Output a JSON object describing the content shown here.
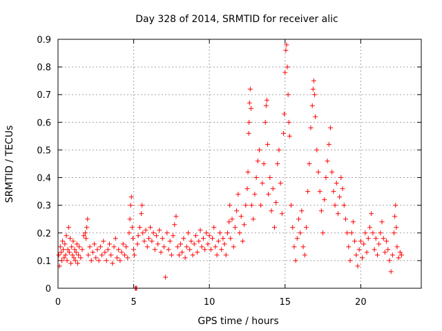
{
  "chart_data": {
    "type": "scatter",
    "title": "Day 328 of 2014, SRMTID for receiver alic",
    "xlabel": "GPS time / hours",
    "ylabel": "SRMTID / TECUs",
    "xlim": [
      0,
      24
    ],
    "ylim": [
      0,
      0.9
    ],
    "xticks": [
      "0",
      "5",
      "10",
      "15",
      "20"
    ],
    "yticks": [
      "0",
      "0.1",
      "0.2",
      "0.3",
      "0.4",
      "0.5",
      "0.6",
      "0.7",
      "0.8",
      "0.9"
    ],
    "grid": true,
    "marker": "plus",
    "color": "#ff0000",
    "series": [
      {
        "name": "SRMTID",
        "points": [
          [
            0.05,
            0.12
          ],
          [
            0.1,
            0.08
          ],
          [
            0.15,
            0.15
          ],
          [
            0.2,
            0.13
          ],
          [
            0.25,
            0.1
          ],
          [
            0.3,
            0.17
          ],
          [
            0.35,
            0.14
          ],
          [
            0.4,
            0.11
          ],
          [
            0.45,
            0.16
          ],
          [
            0.5,
            0.12
          ],
          [
            0.55,
            0.19
          ],
          [
            0.6,
            0.1
          ],
          [
            0.65,
            0.14
          ],
          [
            0.7,
            0.22
          ],
          [
            0.75,
            0.13
          ],
          [
            0.8,
            0.18
          ],
          [
            0.85,
            0.09
          ],
          [
            0.9,
            0.15
          ],
          [
            0.95,
            0.12
          ],
          [
            1.0,
            0.17
          ],
          [
            1.05,
            0.11
          ],
          [
            1.1,
            0.14
          ],
          [
            1.15,
            0.1
          ],
          [
            1.2,
            0.13
          ],
          [
            1.25,
            0.16
          ],
          [
            1.3,
            0.09
          ],
          [
            1.35,
            0.12
          ],
          [
            1.4,
            0.15
          ],
          [
            1.5,
            0.11
          ],
          [
            1.6,
            0.14
          ],
          [
            1.7,
            0.19
          ],
          [
            1.8,
            0.2
          ],
          [
            1.85,
            0.18
          ],
          [
            1.9,
            0.22
          ],
          [
            1.95,
            0.25
          ],
          [
            2.0,
            0.12
          ],
          [
            2.1,
            0.15
          ],
          [
            2.2,
            0.1
          ],
          [
            2.3,
            0.13
          ],
          [
            2.4,
            0.16
          ],
          [
            2.5,
            0.11
          ],
          [
            2.6,
            0.14
          ],
          [
            2.7,
            0.1
          ],
          [
            2.8,
            0.15
          ],
          [
            2.9,
            0.12
          ],
          [
            3.0,
            0.17
          ],
          [
            3.1,
            0.13
          ],
          [
            3.2,
            0.1
          ],
          [
            3.3,
            0.14
          ],
          [
            3.4,
            0.16
          ],
          [
            3.5,
            0.12
          ],
          [
            3.6,
            0.09
          ],
          [
            3.7,
            0.15
          ],
          [
            3.8,
            0.18
          ],
          [
            3.9,
            0.11
          ],
          [
            4.0,
            0.14
          ],
          [
            4.1,
            0.1
          ],
          [
            4.2,
            0.13
          ],
          [
            4.3,
            0.16
          ],
          [
            4.4,
            0.12
          ],
          [
            4.5,
            0.15
          ],
          [
            4.6,
            0.11
          ],
          [
            4.7,
            0.2
          ],
          [
            4.75,
            0.25
          ],
          [
            4.8,
            0.3
          ],
          [
            4.85,
            0.33
          ],
          [
            4.9,
            0.22
          ],
          [
            4.95,
            0.18
          ],
          [
            5.0,
            0.14
          ],
          [
            5.05,
            0.12
          ],
          [
            5.1,
            0.0
          ],
          [
            5.15,
            0.0
          ],
          [
            5.2,
            0.0
          ],
          [
            5.25,
            0.16
          ],
          [
            5.3,
            0.19
          ],
          [
            5.4,
            0.22
          ],
          [
            5.5,
            0.27
          ],
          [
            5.55,
            0.3
          ],
          [
            5.6,
            0.2
          ],
          [
            5.7,
            0.17
          ],
          [
            5.8,
            0.21
          ],
          [
            5.9,
            0.15
          ],
          [
            6.0,
            0.18
          ],
          [
            6.1,
            0.22
          ],
          [
            6.2,
            0.17
          ],
          [
            6.3,
            0.2
          ],
          [
            6.4,
            0.14
          ],
          [
            6.5,
            0.19
          ],
          [
            6.6,
            0.16
          ],
          [
            6.7,
            0.21
          ],
          [
            6.8,
            0.13
          ],
          [
            6.9,
            0.18
          ],
          [
            7.0,
            0.15
          ],
          [
            7.1,
            0.04
          ],
          [
            7.2,
            0.2
          ],
          [
            7.3,
            0.14
          ],
          [
            7.4,
            0.17
          ],
          [
            7.5,
            0.12
          ],
          [
            7.6,
            0.19
          ],
          [
            7.7,
            0.23
          ],
          [
            7.8,
            0.26
          ],
          [
            7.9,
            0.15
          ],
          [
            8.0,
            0.12
          ],
          [
            8.1,
            0.16
          ],
          [
            8.2,
            0.13
          ],
          [
            8.3,
            0.18
          ],
          [
            8.4,
            0.11
          ],
          [
            8.5,
            0.15
          ],
          [
            8.6,
            0.2
          ],
          [
            8.7,
            0.14
          ],
          [
            8.8,
            0.17
          ],
          [
            8.9,
            0.12
          ],
          [
            9.0,
            0.16
          ],
          [
            9.1,
            0.19
          ],
          [
            9.2,
            0.13
          ],
          [
            9.3,
            0.17
          ],
          [
            9.4,
            0.21
          ],
          [
            9.5,
            0.15
          ],
          [
            9.6,
            0.18
          ],
          [
            9.7,
            0.14
          ],
          [
            9.8,
            0.2
          ],
          [
            9.9,
            0.16
          ],
          [
            10.0,
            0.19
          ],
          [
            10.1,
            0.14
          ],
          [
            10.2,
            0.18
          ],
          [
            10.3,
            0.22
          ],
          [
            10.4,
            0.15
          ],
          [
            10.5,
            0.12
          ],
          [
            10.6,
            0.17
          ],
          [
            10.7,
            0.2
          ],
          [
            10.8,
            0.14
          ],
          [
            10.9,
            0.18
          ],
          [
            11.0,
            0.16
          ],
          [
            11.1,
            0.12
          ],
          [
            11.2,
            0.2
          ],
          [
            11.3,
            0.24
          ],
          [
            11.35,
            0.3
          ],
          [
            11.4,
            0.18
          ],
          [
            11.5,
            0.25
          ],
          [
            11.6,
            0.15
          ],
          [
            11.7,
            0.22
          ],
          [
            11.8,
            0.28
          ],
          [
            11.9,
            0.34
          ],
          [
            12.0,
            0.2
          ],
          [
            12.1,
            0.26
          ],
          [
            12.2,
            0.17
          ],
          [
            12.3,
            0.23
          ],
          [
            12.4,
            0.3
          ],
          [
            12.5,
            0.36
          ],
          [
            12.55,
            0.42
          ],
          [
            12.6,
            0.56
          ],
          [
            12.62,
            0.6
          ],
          [
            12.65,
            0.67
          ],
          [
            12.7,
            0.72
          ],
          [
            12.75,
            0.65
          ],
          [
            12.8,
            0.3
          ],
          [
            12.9,
            0.25
          ],
          [
            13.0,
            0.34
          ],
          [
            13.1,
            0.4
          ],
          [
            13.2,
            0.46
          ],
          [
            13.3,
            0.5
          ],
          [
            13.4,
            0.3
          ],
          [
            13.5,
            0.38
          ],
          [
            13.6,
            0.45
          ],
          [
            13.7,
            0.6
          ],
          [
            13.75,
            0.66
          ],
          [
            13.8,
            0.68
          ],
          [
            13.85,
            0.52
          ],
          [
            13.9,
            0.34
          ],
          [
            14.0,
            0.4
          ],
          [
            14.1,
            0.28
          ],
          [
            14.2,
            0.36
          ],
          [
            14.3,
            0.22
          ],
          [
            14.4,
            0.31
          ],
          [
            14.5,
            0.45
          ],
          [
            14.6,
            0.5
          ],
          [
            14.7,
            0.38
          ],
          [
            14.8,
            0.27
          ],
          [
            14.9,
            0.56
          ],
          [
            14.95,
            0.63
          ],
          [
            15.0,
            0.78
          ],
          [
            15.05,
            0.86
          ],
          [
            15.1,
            0.88
          ],
          [
            15.15,
            0.8
          ],
          [
            15.2,
            0.7
          ],
          [
            15.25,
            0.6
          ],
          [
            15.3,
            0.55
          ],
          [
            15.4,
            0.3
          ],
          [
            15.5,
            0.22
          ],
          [
            15.6,
            0.15
          ],
          [
            15.7,
            0.1
          ],
          [
            15.8,
            0.18
          ],
          [
            15.9,
            0.25
          ],
          [
            16.0,
            0.2
          ],
          [
            16.1,
            0.28
          ],
          [
            16.2,
            0.15
          ],
          [
            16.3,
            0.12
          ],
          [
            16.4,
            0.22
          ],
          [
            16.5,
            0.35
          ],
          [
            16.6,
            0.45
          ],
          [
            16.7,
            0.58
          ],
          [
            16.8,
            0.66
          ],
          [
            16.85,
            0.72
          ],
          [
            16.9,
            0.75
          ],
          [
            16.95,
            0.7
          ],
          [
            17.0,
            0.62
          ],
          [
            17.1,
            0.5
          ],
          [
            17.2,
            0.42
          ],
          [
            17.3,
            0.35
          ],
          [
            17.4,
            0.28
          ],
          [
            17.5,
            0.2
          ],
          [
            17.6,
            0.32
          ],
          [
            17.7,
            0.4
          ],
          [
            17.8,
            0.46
          ],
          [
            17.9,
            0.52
          ],
          [
            18.0,
            0.58
          ],
          [
            18.1,
            0.42
          ],
          [
            18.2,
            0.35
          ],
          [
            18.3,
            0.3
          ],
          [
            18.4,
            0.38
          ],
          [
            18.5,
            0.27
          ],
          [
            18.6,
            0.33
          ],
          [
            18.7,
            0.4
          ],
          [
            18.8,
            0.36
          ],
          [
            18.9,
            0.3
          ],
          [
            19.0,
            0.25
          ],
          [
            19.1,
            0.2
          ],
          [
            19.2,
            0.15
          ],
          [
            19.3,
            0.1
          ],
          [
            19.4,
            0.2
          ],
          [
            19.5,
            0.24
          ],
          [
            19.6,
            0.17
          ],
          [
            19.7,
            0.12
          ],
          [
            19.8,
            0.08
          ],
          [
            19.9,
            0.14
          ],
          [
            20.0,
            0.17
          ],
          [
            20.1,
            0.11
          ],
          [
            20.2,
            0.16
          ],
          [
            20.3,
            0.2
          ],
          [
            20.4,
            0.13
          ],
          [
            20.5,
            0.18
          ],
          [
            20.6,
            0.22
          ],
          [
            20.7,
            0.27
          ],
          [
            20.8,
            0.2
          ],
          [
            20.9,
            0.14
          ],
          [
            21.0,
            0.18
          ],
          [
            21.1,
            0.12
          ],
          [
            21.2,
            0.16
          ],
          [
            21.3,
            0.2
          ],
          [
            21.4,
            0.24
          ],
          [
            21.5,
            0.18
          ],
          [
            21.6,
            0.13
          ],
          [
            21.7,
            0.17
          ],
          [
            21.8,
            0.14
          ],
          [
            21.9,
            0.1
          ],
          [
            22.0,
            0.06
          ],
          [
            22.1,
            0.12
          ],
          [
            22.2,
            0.2
          ],
          [
            22.25,
            0.26
          ],
          [
            22.3,
            0.3
          ],
          [
            22.35,
            0.22
          ],
          [
            22.4,
            0.15
          ],
          [
            22.5,
            0.11
          ],
          [
            22.6,
            0.13
          ],
          [
            22.7,
            0.12
          ]
        ]
      }
    ]
  }
}
